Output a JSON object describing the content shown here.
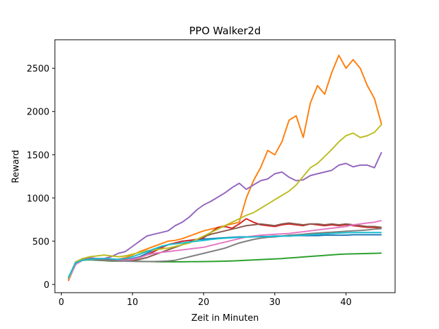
{
  "chart_data": {
    "type": "line",
    "title": "PPO Walker2d",
    "xlabel": "Zeit in Minuten",
    "ylabel": "Reward",
    "xlim": [
      -0.9,
      46.9
    ],
    "ylim": [
      -95,
      2830
    ],
    "xticks": [
      0,
      10,
      20,
      30,
      40
    ],
    "yticks": [
      0,
      500,
      1000,
      1500,
      2000,
      2500
    ],
    "grid": false,
    "legend": "none",
    "x": [
      1,
      2,
      3,
      4,
      5,
      6,
      7,
      8,
      9,
      10,
      11,
      12,
      13,
      14,
      15,
      16,
      17,
      18,
      19,
      20,
      21,
      22,
      23,
      24,
      25,
      26,
      27,
      28,
      29,
      30,
      31,
      32,
      33,
      34,
      35,
      36,
      37,
      38,
      39,
      40,
      41,
      42,
      43,
      44,
      45
    ],
    "series": [
      {
        "color": "#1f77b4",
        "values": [
          60,
          250,
          290,
          300,
          290,
          285,
          280,
          280,
          285,
          300,
          320,
          360,
          400,
          430,
          460,
          480,
          500,
          510,
          520,
          525,
          530,
          535,
          540,
          545,
          550,
          550,
          555,
          555,
          555,
          560,
          560,
          560,
          565,
          565,
          565,
          565,
          570,
          570,
          570,
          570,
          575,
          575,
          575,
          575,
          575
        ]
      },
      {
        "color": "#ff7f0e",
        "values": [
          40,
          240,
          290,
          300,
          290,
          285,
          280,
          290,
          310,
          340,
          380,
          410,
          440,
          470,
          500,
          510,
          530,
          560,
          590,
          620,
          640,
          660,
          680,
          700,
          720,
          1000,
          1200,
          1350,
          1550,
          1500,
          1650,
          1900,
          1950,
          1700,
          2100,
          2300,
          2200,
          2450,
          2650,
          2500,
          2600,
          2500,
          2300,
          2150,
          1850
        ]
      },
      {
        "color": "#2ca02c",
        "values": [
          80,
          250,
          280,
          285,
          280,
          275,
          270,
          270,
          270,
          270,
          268,
          266,
          264,
          262,
          262,
          262,
          262,
          263,
          264,
          265,
          266,
          268,
          270,
          272,
          276,
          280,
          284,
          288,
          292,
          296,
          300,
          306,
          312,
          318,
          324,
          330,
          336,
          342,
          348,
          352,
          354,
          356,
          358,
          360,
          362
        ]
      },
      {
        "color": "#d62728",
        "values": [
          50,
          230,
          290,
          300,
          295,
          290,
          285,
          280,
          285,
          290,
          310,
          340,
          380,
          420,
          460,
          480,
          500,
          510,
          520,
          540,
          600,
          660,
          670,
          650,
          700,
          760,
          720,
          690,
          680,
          670,
          690,
          700,
          690,
          680,
          700,
          690,
          680,
          690,
          680,
          690,
          680,
          670,
          660,
          660,
          650
        ]
      },
      {
        "color": "#9467bd",
        "values": [
          70,
          260,
          300,
          310,
          300,
          300,
          320,
          360,
          380,
          440,
          500,
          560,
          580,
          600,
          620,
          680,
          720,
          780,
          860,
          920,
          960,
          1010,
          1060,
          1120,
          1170,
          1100,
          1150,
          1200,
          1220,
          1280,
          1300,
          1240,
          1200,
          1210,
          1260,
          1280,
          1300,
          1320,
          1380,
          1400,
          1360,
          1380,
          1380,
          1350,
          1530
        ]
      },
      {
        "color": "#8c564b",
        "values": [
          60,
          240,
          280,
          290,
          285,
          280,
          275,
          270,
          270,
          275,
          290,
          310,
          340,
          370,
          400,
          430,
          460,
          490,
          520,
          550,
          580,
          600,
          620,
          640,
          660,
          680,
          690,
          700,
          690,
          680,
          700,
          710,
          700,
          690,
          700,
          700,
          690,
          700,
          690,
          700,
          690,
          680,
          670,
          670,
          660
        ]
      },
      {
        "color": "#e377c2",
        "values": [
          50,
          230,
          280,
          290,
          285,
          280,
          275,
          275,
          280,
          290,
          310,
          340,
          360,
          370,
          380,
          390,
          400,
          410,
          420,
          430,
          450,
          470,
          490,
          510,
          530,
          550,
          560,
          570,
          575,
          580,
          585,
          590,
          600,
          610,
          620,
          630,
          640,
          650,
          660,
          670,
          690,
          700,
          710,
          720,
          740
        ]
      },
      {
        "color": "#7f7f7f",
        "values": [
          70,
          250,
          290,
          295,
          285,
          280,
          275,
          270,
          270,
          268,
          266,
          265,
          266,
          268,
          272,
          280,
          300,
          320,
          340,
          360,
          380,
          400,
          420,
          450,
          480,
          500,
          520,
          535,
          545,
          550,
          560,
          570,
          575,
          580,
          590,
          595,
          600,
          605,
          610,
          615,
          620,
          625,
          630,
          640,
          645
        ]
      },
      {
        "color": "#bcbd22",
        "values": [
          60,
          260,
          300,
          320,
          330,
          340,
          330,
          320,
          330,
          350,
          370,
          390,
          400,
          410,
          420,
          440,
          460,
          480,
          520,
          560,
          600,
          640,
          680,
          720,
          760,
          800,
          830,
          880,
          930,
          980,
          1030,
          1080,
          1150,
          1250,
          1350,
          1400,
          1480,
          1560,
          1650,
          1720,
          1750,
          1700,
          1720,
          1760,
          1850
        ]
      },
      {
        "color": "#17becf",
        "values": [
          80,
          250,
          280,
          290,
          300,
          300,
          295,
          290,
          300,
          320,
          350,
          380,
          410,
          440,
          460,
          470,
          480,
          490,
          500,
          510,
          520,
          530,
          535,
          540,
          545,
          548,
          550,
          552,
          554,
          556,
          558,
          560,
          565,
          570,
          575,
          580,
          585,
          590,
          595,
          598,
          600,
          600,
          600,
          600,
          600
        ]
      }
    ]
  }
}
